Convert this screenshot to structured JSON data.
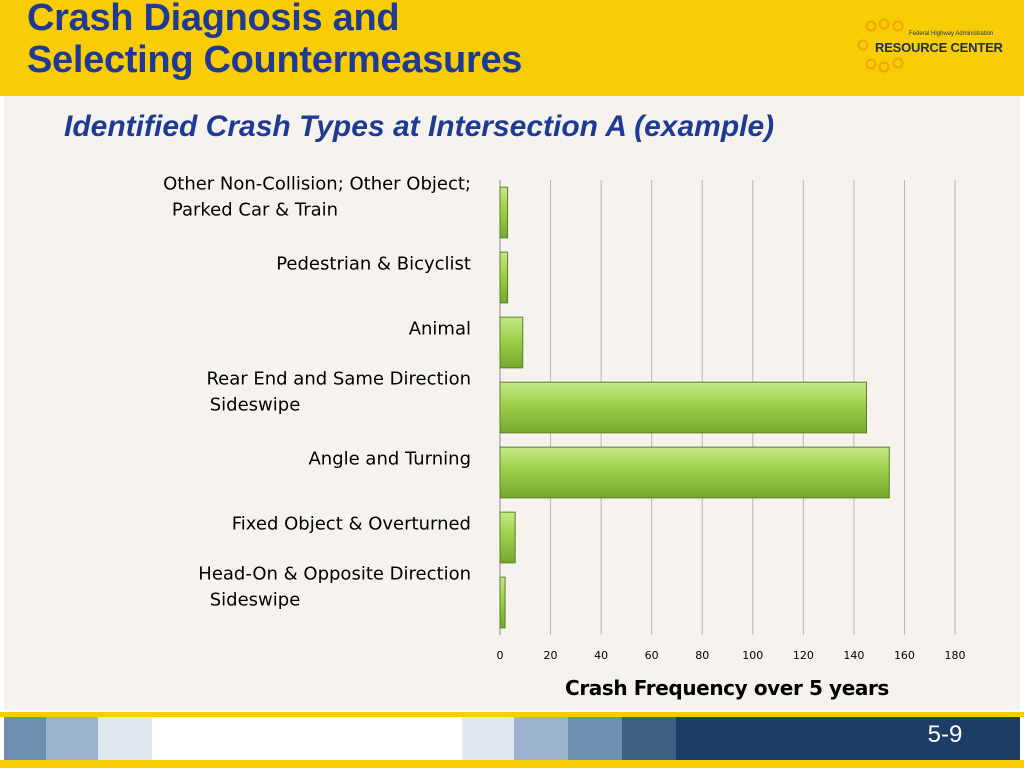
{
  "slide": {
    "title_line1": "Crash Diagnosis and",
    "title_line2": "Selecting Countermeasures",
    "page_number": "5-9"
  },
  "logo": {
    "agency": "Federal Highway Administration",
    "name": "RESOURCE CENTER"
  },
  "colors": {
    "header": "#f9cd06",
    "title": "#1f3a93",
    "bar_fill": "#9ccf48",
    "bar_edge": "#5b7f22",
    "content_bg": "#f6f3ee"
  },
  "chart_data": {
    "type": "bar",
    "orientation": "horizontal",
    "title": "Identified Crash Types at Intersection A (example)",
    "xlabel": "Crash Frequency over 5 years",
    "ylabel": "",
    "xlim": [
      0,
      180
    ],
    "x_ticks": [
      0,
      20,
      40,
      60,
      80,
      100,
      120,
      140,
      160,
      180
    ],
    "grid": "vertical",
    "categories": [
      "Other Non-Collision; Other Object; Parked Car & Train",
      "Pedestrian & Bicyclist",
      "Animal",
      "Rear End and Same Direction Sideswipe",
      "Angle and Turning",
      "Fixed Object & Overturned",
      "Head-On & Opposite Direction Sideswipe"
    ],
    "values": [
      3,
      3,
      9,
      145,
      154,
      6,
      2
    ]
  }
}
